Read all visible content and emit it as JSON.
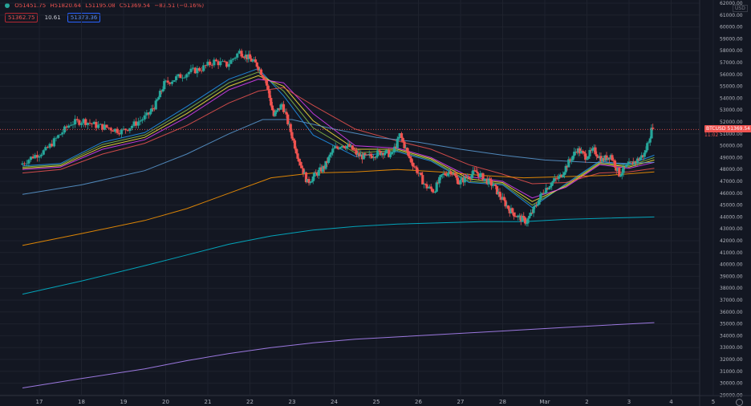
{
  "legend": {
    "open": "O51451.75",
    "high": "H51820.64",
    "low": "L51195.08",
    "close": "C51369.54",
    "change": "−83.51 (−0.16%)",
    "bid": "51362.75",
    "spread": "10.61",
    "ask": "51373.36"
  },
  "currency": "USD",
  "price_tag": {
    "symbol": "BTCUSD",
    "price": "51369.54",
    "sub": "11:02"
  },
  "colors": {
    "background": "#131722",
    "up": "#26a69a",
    "down": "#ef5350",
    "grid": "#1e222d"
  },
  "chart_data": {
    "type": "candlestick",
    "x_tick_labels": [
      "17",
      "18",
      "19",
      "20",
      "21",
      "22",
      "23",
      "24",
      "25",
      "26",
      "27",
      "28",
      "Mar",
      "2",
      "3",
      "4",
      "5"
    ],
    "y_tick_labels": [
      "62000.00",
      "61000.00",
      "60000.00",
      "59000.00",
      "58000.00",
      "57000.00",
      "56000.00",
      "55000.00",
      "54000.00",
      "53000.00",
      "52000.00",
      "51000.00",
      "50000.00",
      "49000.00",
      "48000.00",
      "47000.00",
      "46000.00",
      "45000.00",
      "44000.00",
      "43000.00",
      "42000.00",
      "41000.00",
      "40000.00",
      "39000.00",
      "38000.00",
      "37000.00",
      "36000.00",
      "35000.00",
      "34000.00",
      "33000.00",
      "32000.00",
      "31000.00",
      "30000.00",
      "29000.00"
    ],
    "ylim": [
      29000,
      62500
    ],
    "current_price": 51369.54,
    "price_path": [
      [
        16.6,
        48400
      ],
      [
        16.9,
        49100
      ],
      [
        17.2,
        49600
      ],
      [
        17.5,
        50800
      ],
      [
        17.8,
        51900
      ],
      [
        18.1,
        52100
      ],
      [
        18.4,
        51700
      ],
      [
        18.7,
        51500
      ],
      [
        19.0,
        51200
      ],
      [
        19.3,
        51800
      ],
      [
        19.6,
        52500
      ],
      [
        19.8,
        53500
      ],
      [
        20.0,
        55200
      ],
      [
        20.3,
        55700
      ],
      [
        20.6,
        56200
      ],
      [
        20.9,
        56500
      ],
      [
        21.2,
        57100
      ],
      [
        21.5,
        56800
      ],
      [
        21.8,
        57900
      ],
      [
        22.0,
        57400
      ],
      [
        22.2,
        56800
      ],
      [
        22.4,
        55600
      ],
      [
        22.6,
        52500
      ],
      [
        22.8,
        53500
      ],
      [
        23.0,
        51200
      ],
      [
        23.2,
        48800
      ],
      [
        23.4,
        46900
      ],
      [
        23.6,
        47600
      ],
      [
        23.8,
        48200
      ],
      [
        24.0,
        49600
      ],
      [
        24.2,
        50100
      ],
      [
        24.4,
        49900
      ],
      [
        24.6,
        49200
      ],
      [
        24.8,
        49000
      ],
      [
        25.0,
        49300
      ],
      [
        25.2,
        49500
      ],
      [
        25.4,
        49200
      ],
      [
        25.6,
        50900
      ],
      [
        25.8,
        49100
      ],
      [
        26.0,
        47900
      ],
      [
        26.2,
        46600
      ],
      [
        26.4,
        46200
      ],
      [
        26.6,
        47500
      ],
      [
        26.8,
        47900
      ],
      [
        27.0,
        46900
      ],
      [
        27.2,
        47400
      ],
      [
        27.4,
        47800
      ],
      [
        27.6,
        47200
      ],
      [
        27.8,
        46700
      ],
      [
        28.0,
        45600
      ],
      [
        28.2,
        44600
      ],
      [
        28.4,
        44000
      ],
      [
        28.6,
        43600
      ],
      [
        28.8,
        44800
      ],
      [
        29.0,
        46200
      ],
      [
        29.2,
        46900
      ],
      [
        29.4,
        47400
      ],
      [
        29.6,
        48600
      ],
      [
        29.8,
        49700
      ],
      [
        30.0,
        49100
      ],
      [
        30.2,
        49600
      ],
      [
        30.4,
        48800
      ],
      [
        30.6,
        49200
      ],
      [
        30.8,
        47600
      ],
      [
        31.0,
        48300
      ],
      [
        31.2,
        48700
      ],
      [
        31.4,
        49300
      ],
      [
        31.6,
        51700
      ]
    ],
    "moving_averages": [
      {
        "color": "#2196f3",
        "values": [
          [
            16.6,
            48300
          ],
          [
            17.5,
            48500
          ],
          [
            18.5,
            50300
          ],
          [
            19.5,
            51100
          ],
          [
            20.5,
            53300
          ],
          [
            21.5,
            55600
          ],
          [
            22.2,
            56500
          ],
          [
            22.8,
            54200
          ],
          [
            23.5,
            50900
          ],
          [
            24.5,
            49100
          ],
          [
            25.5,
            49500
          ],
          [
            26.3,
            48700
          ],
          [
            27.2,
            46900
          ],
          [
            28.0,
            46700
          ],
          [
            28.7,
            44800
          ],
          [
            29.5,
            46800
          ],
          [
            30.3,
            48700
          ],
          [
            31.0,
            48400
          ],
          [
            31.6,
            49200
          ]
        ]
      },
      {
        "color": "#8bc34a",
        "values": [
          [
            16.6,
            48200
          ],
          [
            17.5,
            48400
          ],
          [
            18.5,
            50100
          ],
          [
            19.5,
            50900
          ],
          [
            20.5,
            53000
          ],
          [
            21.5,
            55300
          ],
          [
            22.2,
            56200
          ],
          [
            22.8,
            54600
          ],
          [
            23.5,
            51500
          ],
          [
            24.5,
            49400
          ],
          [
            25.5,
            49600
          ],
          [
            26.3,
            48800
          ],
          [
            27.2,
            47000
          ],
          [
            28.0,
            46800
          ],
          [
            28.7,
            45000
          ],
          [
            29.5,
            46700
          ],
          [
            30.3,
            48600
          ],
          [
            31.0,
            48300
          ],
          [
            31.6,
            49000
          ]
        ]
      },
      {
        "color": "#ffeb3b",
        "values": [
          [
            16.6,
            48100
          ],
          [
            17.5,
            48300
          ],
          [
            18.5,
            49900
          ],
          [
            19.5,
            50700
          ],
          [
            20.5,
            52700
          ],
          [
            21.5,
            55000
          ],
          [
            22.2,
            55900
          ],
          [
            22.8,
            55000
          ],
          [
            23.5,
            52100
          ],
          [
            24.5,
            49700
          ],
          [
            25.5,
            49700
          ],
          [
            26.3,
            48900
          ],
          [
            27.2,
            47200
          ],
          [
            28.0,
            46900
          ],
          [
            28.7,
            45300
          ],
          [
            29.5,
            46600
          ],
          [
            30.3,
            48500
          ],
          [
            31.0,
            48200
          ],
          [
            31.6,
            48800
          ]
        ]
      },
      {
        "color": "#e040fb",
        "values": [
          [
            16.6,
            48000
          ],
          [
            17.5,
            48200
          ],
          [
            18.5,
            49700
          ],
          [
            19.5,
            50500
          ],
          [
            20.5,
            52400
          ],
          [
            21.5,
            54700
          ],
          [
            22.2,
            55600
          ],
          [
            22.8,
            55300
          ],
          [
            23.5,
            52700
          ],
          [
            24.5,
            50000
          ],
          [
            25.5,
            49800
          ],
          [
            26.3,
            49000
          ],
          [
            27.2,
            47400
          ],
          [
            28.0,
            47000
          ],
          [
            28.7,
            45600
          ],
          [
            29.5,
            46500
          ],
          [
            30.3,
            48400
          ],
          [
            31.0,
            48100
          ],
          [
            31.6,
            48600
          ]
        ]
      },
      {
        "color": "#ef5350",
        "values": [
          [
            16.6,
            47700
          ],
          [
            17.5,
            48000
          ],
          [
            18.5,
            49300
          ],
          [
            19.5,
            50200
          ],
          [
            20.5,
            51700
          ],
          [
            21.5,
            53600
          ],
          [
            22.2,
            54600
          ],
          [
            22.8,
            54900
          ],
          [
            23.5,
            53400
          ],
          [
            24.5,
            51400
          ],
          [
            25.5,
            50400
          ],
          [
            26.3,
            49700
          ],
          [
            27.2,
            48400
          ],
          [
            28.0,
            47600
          ],
          [
            28.7,
            46800
          ],
          [
            29.5,
            46900
          ],
          [
            30.3,
            47700
          ],
          [
            31.0,
            47800
          ],
          [
            31.6,
            48100
          ]
        ]
      },
      {
        "color": "#5b9bd5",
        "values": [
          [
            16.6,
            45900
          ],
          [
            18.0,
            46700
          ],
          [
            19.5,
            47900
          ],
          [
            20.5,
            49300
          ],
          [
            21.5,
            51000
          ],
          [
            22.3,
            52200
          ],
          [
            23.0,
            52200
          ],
          [
            24.0,
            51400
          ],
          [
            25.0,
            50700
          ],
          [
            26.0,
            50300
          ],
          [
            27.0,
            49700
          ],
          [
            28.0,
            49200
          ],
          [
            29.0,
            48800
          ],
          [
            30.0,
            48600
          ],
          [
            31.0,
            48500
          ],
          [
            31.6,
            48600
          ]
        ]
      },
      {
        "color": "#ff9800",
        "values": [
          [
            16.6,
            41600
          ],
          [
            18.0,
            42600
          ],
          [
            19.5,
            43700
          ],
          [
            20.5,
            44700
          ],
          [
            21.5,
            46000
          ],
          [
            22.5,
            47300
          ],
          [
            23.5,
            47700
          ],
          [
            24.5,
            47800
          ],
          [
            25.5,
            48000
          ],
          [
            26.5,
            47800
          ],
          [
            27.5,
            47500
          ],
          [
            28.5,
            47300
          ],
          [
            29.5,
            47400
          ],
          [
            30.5,
            47500
          ],
          [
            31.6,
            47800
          ]
        ]
      },
      {
        "color": "#00bcd4",
        "values": [
          [
            16.6,
            37500
          ],
          [
            18.0,
            38600
          ],
          [
            19.5,
            39900
          ],
          [
            20.5,
            40800
          ],
          [
            21.5,
            41700
          ],
          [
            22.5,
            42400
          ],
          [
            23.5,
            42900
          ],
          [
            24.5,
            43200
          ],
          [
            25.5,
            43400
          ],
          [
            26.5,
            43500
          ],
          [
            27.5,
            43600
          ],
          [
            28.5,
            43600
          ],
          [
            29.5,
            43800
          ],
          [
            30.5,
            43900
          ],
          [
            31.6,
            44000
          ]
        ]
      },
      {
        "color": "#b388ff",
        "values": [
          [
            16.6,
            29600
          ],
          [
            18.0,
            30400
          ],
          [
            19.5,
            31200
          ],
          [
            20.5,
            31900
          ],
          [
            21.5,
            32500
          ],
          [
            22.5,
            33000
          ],
          [
            23.5,
            33400
          ],
          [
            24.5,
            33700
          ],
          [
            25.5,
            33900
          ],
          [
            26.5,
            34100
          ],
          [
            27.5,
            34300
          ],
          [
            28.5,
            34500
          ],
          [
            29.5,
            34700
          ],
          [
            30.5,
            34900
          ],
          [
            31.6,
            35100
          ]
        ]
      }
    ]
  }
}
